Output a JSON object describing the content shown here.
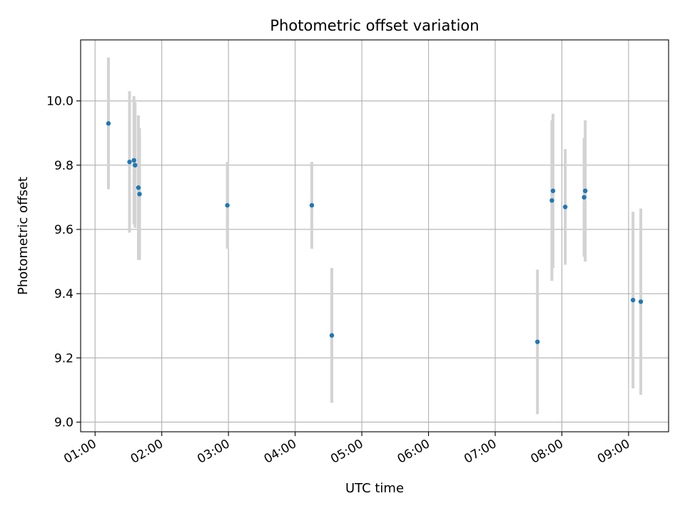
{
  "chart_data": {
    "type": "scatter",
    "title": "Photometric offset variation",
    "xlabel": "UTC time",
    "ylabel": "Photometric offset",
    "x_tick_labels": [
      "01:00",
      "02:00",
      "03:00",
      "04:00",
      "05:00",
      "06:00",
      "07:00",
      "08:00",
      "09:00"
    ],
    "y_tick_labels": [
      "9.0",
      "9.2",
      "9.4",
      "9.6",
      "9.8",
      "10.0"
    ],
    "y_ticks": [
      9.0,
      9.2,
      9.4,
      9.6,
      9.8,
      10.0
    ],
    "xlim": [
      "00:47",
      "09:36"
    ],
    "ylim": [
      8.97,
      10.19
    ],
    "grid": true,
    "error_bar_color": "#d3d3d3",
    "point_color": "#1f77b4",
    "points": [
      {
        "time": "01:12",
        "y": 9.93,
        "err": 0.205
      },
      {
        "time": "01:31",
        "y": 9.81,
        "err": 0.22
      },
      {
        "time": "01:35",
        "y": 9.815,
        "err": 0.2
      },
      {
        "time": "01:36",
        "y": 9.8,
        "err": 0.195
      },
      {
        "time": "01:39",
        "y": 9.73,
        "err": 0.225
      },
      {
        "time": "01:40",
        "y": 9.71,
        "err": 0.205
      },
      {
        "time": "02:59",
        "y": 9.675,
        "err": 0.135
      },
      {
        "time": "04:15",
        "y": 9.675,
        "err": 0.135
      },
      {
        "time": "04:33",
        "y": 9.27,
        "err": 0.21
      },
      {
        "time": "07:38",
        "y": 9.25,
        "err": 0.225
      },
      {
        "time": "07:51",
        "y": 9.69,
        "err": 0.25
      },
      {
        "time": "07:52",
        "y": 9.72,
        "err": 0.24
      },
      {
        "time": "08:03",
        "y": 9.67,
        "err": 0.18
      },
      {
        "time": "08:20",
        "y": 9.7,
        "err": 0.185
      },
      {
        "time": "08:21",
        "y": 9.72,
        "err": 0.22
      },
      {
        "time": "09:04",
        "y": 9.38,
        "err": 0.275
      },
      {
        "time": "09:11",
        "y": 9.375,
        "err": 0.29
      }
    ]
  }
}
